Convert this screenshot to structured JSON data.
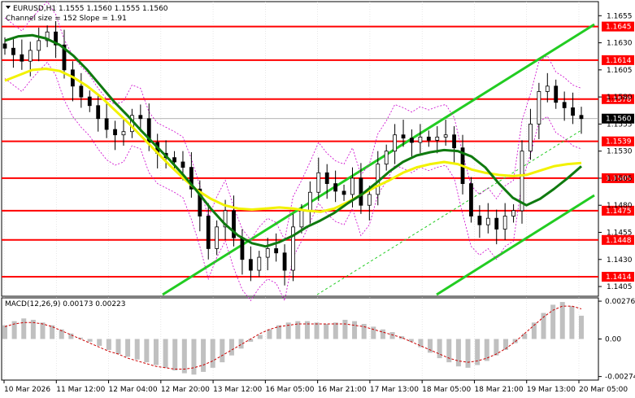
{
  "header": {
    "title": "EURUSD,H1  1.1555 1.1560 1.1555 1.1560",
    "channel_info": "Channel size = 152 Slope = 1.91"
  },
  "macd": {
    "label": "MACD(12,26,9) 0.00173 0.00223",
    "axis_ticks": [
      "0.00276",
      "0.00",
      "-0.00274"
    ]
  },
  "colors": {
    "level": "#ff0000",
    "ma_fast": "#0f7a0f",
    "ma_slow": "#f2f200",
    "channel": "#22cc22",
    "candle": "#000000",
    "macd_hist": "#c0c0c0",
    "macd_signal": "#cc0000",
    "envelope": "#cc00cc"
  },
  "chart_data": {
    "type": "candlestick",
    "symbol": "EURUSD",
    "timeframe": "H1",
    "ylim": [
      1.1396,
      1.1668
    ],
    "y_ticks": [
      "1.1655",
      "1.1630",
      "1.1605",
      "1.1580",
      "1.1555",
      "1.1530",
      "1.1505",
      "1.1480",
      "1.1455",
      "1.1430",
      "1.1405"
    ],
    "x_ticks": [
      "10 Mar 2026",
      "11 Mar 12:00",
      "12 Mar 04:00",
      "12 Mar 20:00",
      "13 Mar 12:00",
      "16 Mar 05:00",
      "16 Mar 21:00",
      "17 Mar 13:00",
      "18 Mar 05:00",
      "18 Mar 21:00",
      "19 Mar 13:00",
      "20 Mar 05:00"
    ],
    "current_price": "1.1560",
    "levels": [
      {
        "value": 1.1645,
        "label": "1.1645"
      },
      {
        "value": 1.1614,
        "label": "1.1614"
      },
      {
        "value": 1.1578,
        "label": "1.1578"
      },
      {
        "value": 1.1539,
        "label": "1.1539"
      },
      {
        "value": 1.1505,
        "label": "1.1505"
      },
      {
        "value": 1.1475,
        "label": "1.1475"
      },
      {
        "value": 1.1448,
        "label": "1.1448"
      },
      {
        "value": 1.1414,
        "label": "1.1414"
      }
    ],
    "close_series": [
      1.1625,
      1.1619,
      1.1613,
      1.1623,
      1.1632,
      1.164,
      1.1628,
      1.1605,
      1.159,
      1.158,
      1.1572,
      1.156,
      1.155,
      1.1545,
      1.1548,
      1.1563,
      1.156,
      1.1538,
      1.1528,
      1.1524,
      1.152,
      1.1515,
      1.1495,
      1.147,
      1.144,
      1.146,
      1.1475,
      1.145,
      1.143,
      1.142,
      1.1432,
      1.144,
      1.1436,
      1.142,
      1.146,
      1.1475,
      1.1492,
      1.151,
      1.15,
      1.1493,
      1.149,
      1.1505,
      1.148,
      1.149,
      1.1518,
      1.153,
      1.1545,
      1.1542,
      1.1538,
      1.1543,
      1.154,
      1.1543,
      1.1545,
      1.1533,
      1.15,
      1.147,
      1.1462,
      1.1468,
      1.1458,
      1.147,
      1.1475,
      1.153,
      1.1555,
      1.1585,
      1.159,
      1.1575,
      1.157,
      1.1563,
      1.156
    ],
    "ma_fast": [
      1.1632,
      1.1636,
      1.1637,
      1.1634,
      1.1628,
      1.1618,
      1.1605,
      1.159,
      1.1575,
      1.1562,
      1.1548,
      1.1535,
      1.1522,
      1.1508,
      1.1493,
      1.1477,
      1.1463,
      1.1452,
      1.1445,
      1.1442,
      1.1446,
      1.1452,
      1.146,
      1.1466,
      1.1473,
      1.1482,
      1.149,
      1.15,
      1.1511,
      1.152,
      1.1526,
      1.1529,
      1.1531,
      1.153,
      1.1525,
      1.1515,
      1.15,
      1.1487,
      1.148,
      1.1486,
      1.1495,
      1.1505,
      1.1516
    ],
    "ma_slow": [
      1.1595,
      1.16,
      1.1605,
      1.1606,
      1.1604,
      1.1598,
      1.159,
      1.158,
      1.1568,
      1.1556,
      1.1543,
      1.153,
      1.1517,
      1.1505,
      1.1494,
      1.1486,
      1.148,
      1.1477,
      1.1476,
      1.1477,
      1.1478,
      1.1477,
      1.1475,
      1.1474,
      1.1477,
      1.1483,
      1.149,
      1.1497,
      1.1503,
      1.151,
      1.1515,
      1.1518,
      1.152,
      1.1518,
      1.1513,
      1.151,
      1.1508,
      1.1507,
      1.1508,
      1.1512,
      1.1516,
      1.1518,
      1.1519
    ],
    "macd_hist": [
      0.001,
      0.0013,
      0.0015,
      0.0014,
      0.0012,
      0.001,
      0.0007,
      0.0004,
      0.0001,
      -0.0002,
      -0.0005,
      -0.0008,
      -0.0011,
      -0.0013,
      -0.0015,
      -0.0017,
      -0.0019,
      -0.0021,
      -0.0023,
      -0.0025,
      -0.0026,
      -0.0024,
      -0.0021,
      -0.0017,
      -0.0012,
      -0.0007,
      -0.0002,
      0.0003,
      0.0007,
      0.001,
      0.0012,
      0.0013,
      0.0013,
      0.0012,
      0.0011,
      0.0012,
      0.0014,
      0.0013,
      0.0011,
      0.0009,
      0.0007,
      0.0005,
      0.0002,
      -0.0002,
      -0.0006,
      -0.001,
      -0.0014,
      -0.0017,
      -0.002,
      -0.0021,
      -0.0019,
      -0.0016,
      -0.0012,
      -0.0008,
      -0.0003,
      0.0004,
      0.0012,
      0.0019,
      0.0025,
      0.0027,
      0.0024,
      0.0017
    ],
    "macd_signal": [
      0.0009,
      0.0011,
      0.0012,
      0.0012,
      0.0011,
      0.0009,
      0.0006,
      0.0003,
      0.0,
      -0.0003,
      -0.0006,
      -0.0009,
      -0.0011,
      -0.0014,
      -0.0016,
      -0.0018,
      -0.002,
      -0.0021,
      -0.0022,
      -0.0022,
      -0.0021,
      -0.0019,
      -0.0016,
      -0.0012,
      -0.0008,
      -0.0004,
      0.0,
      0.0004,
      0.0007,
      0.0009,
      0.001,
      0.0011,
      0.0011,
      0.0011,
      0.0011,
      0.0011,
      0.0011,
      0.001,
      0.0009,
      0.0007,
      0.0005,
      0.0003,
      0.0001,
      -0.0002,
      -0.0005,
      -0.0008,
      -0.0011,
      -0.0014,
      -0.0016,
      -0.0017,
      -0.0016,
      -0.0014,
      -0.0011,
      -0.0007,
      -0.0002,
      0.0004,
      0.001,
      0.0016,
      0.0021,
      0.0024,
      0.0024,
      0.0022
    ],
    "macd_ylim": [
      -0.003,
      0.003
    ]
  }
}
